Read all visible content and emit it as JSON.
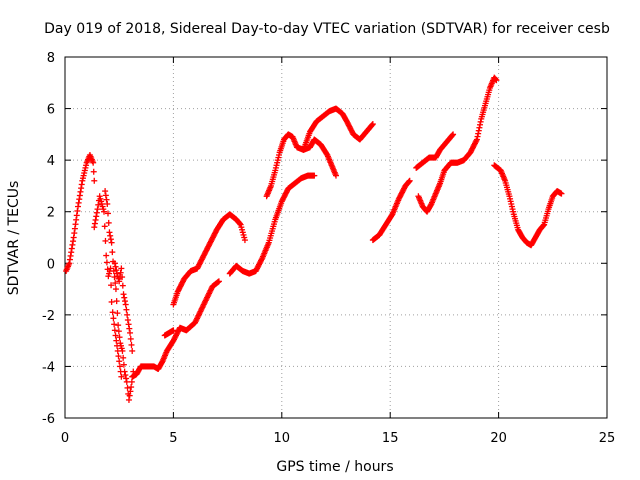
{
  "chart_data": {
    "type": "scatter",
    "title": "Day 019 of 2018, Sidereal Day-to-day VTEC variation (SDTVAR) for receiver cesb",
    "xlabel": "GPS time / hours",
    "ylabel": "SDTVAR / TECUs",
    "xlim": [
      0,
      25
    ],
    "ylim": [
      -6,
      8
    ],
    "xticks": [
      "0",
      "5",
      "10",
      "15",
      "20",
      "25"
    ],
    "yticks": [
      "-6",
      "-4",
      "-2",
      "0",
      "2",
      "4",
      "6",
      "8"
    ],
    "grid": true,
    "marker": "+",
    "series_color": "#ff0000",
    "series": [
      {
        "segments": [
          [
            [
              0.05,
              -0.3
            ],
            [
              0.2,
              0.0
            ],
            [
              0.4,
              1.0
            ],
            [
              0.6,
              2.2
            ],
            [
              0.8,
              3.2
            ],
            [
              1.0,
              3.9
            ],
            [
              1.15,
              4.2
            ],
            [
              1.3,
              3.9
            ],
            [
              1.35,
              3.2
            ]
          ],
          [
            [
              1.35,
              1.4
            ],
            [
              1.5,
              2.1
            ],
            [
              1.6,
              2.6
            ],
            [
              1.7,
              2.3
            ],
            [
              1.8,
              2.0
            ],
            [
              1.9,
              0.3
            ],
            [
              2.0,
              -0.5
            ],
            [
              2.1,
              -0.2
            ],
            [
              2.15,
              -1.5
            ]
          ],
          [
            [
              1.85,
              2.8
            ],
            [
              1.95,
              2.3
            ],
            [
              2.05,
              1.2
            ],
            [
              2.15,
              0.8
            ],
            [
              2.25,
              -0.3
            ],
            [
              2.35,
              -1.0
            ],
            [
              2.45,
              -2.4
            ],
            [
              2.55,
              -3.1
            ],
            [
              2.65,
              -3.4
            ],
            [
              2.75,
              -4.2
            ],
            [
              2.85,
              -4.6
            ],
            [
              2.95,
              -5.3
            ],
            [
              3.05,
              -4.8
            ],
            [
              3.15,
              -4.2
            ]
          ],
          [
            [
              2.2,
              -1.9
            ],
            [
              2.3,
              -2.6
            ],
            [
              2.4,
              -3.2
            ],
            [
              2.5,
              -3.8
            ],
            [
              2.6,
              -4.4
            ]
          ],
          [
            [
              2.3,
              0.0
            ],
            [
              2.4,
              -0.4
            ],
            [
              2.5,
              -0.7
            ],
            [
              2.6,
              -0.2
            ],
            [
              2.7,
              -1.2
            ],
            [
              2.8,
              -1.6
            ],
            [
              2.9,
              -2.2
            ],
            [
              3.0,
              -2.7
            ],
            [
              3.1,
              -3.4
            ]
          ],
          [
            [
              3.1,
              -4.4
            ],
            [
              3.3,
              -4.3
            ],
            [
              3.5,
              -4.0
            ],
            [
              3.8,
              -4.0
            ],
            [
              4.1,
              -4.0
            ],
            [
              4.3,
              -4.1
            ],
            [
              4.5,
              -3.8
            ],
            [
              4.7,
              -3.4
            ],
            [
              5.0,
              -3.0
            ],
            [
              5.3,
              -2.5
            ],
            [
              5.6,
              -2.6
            ],
            [
              6.0,
              -2.3
            ],
            [
              6.4,
              -1.6
            ],
            [
              6.8,
              -0.9
            ],
            [
              7.1,
              -0.7
            ]
          ],
          [
            [
              4.6,
              -2.8
            ],
            [
              4.8,
              -2.7
            ],
            [
              5.0,
              -2.6
            ]
          ],
          [
            [
              5.0,
              -1.6
            ],
            [
              5.2,
              -1.1
            ],
            [
              5.5,
              -0.6
            ],
            [
              5.8,
              -0.3
            ],
            [
              6.1,
              -0.2
            ],
            [
              6.4,
              0.3
            ],
            [
              6.7,
              0.8
            ],
            [
              7.0,
              1.3
            ],
            [
              7.3,
              1.7
            ],
            [
              7.6,
              1.9
            ],
            [
              7.9,
              1.7
            ],
            [
              8.1,
              1.5
            ],
            [
              8.2,
              1.2
            ],
            [
              8.3,
              0.9
            ]
          ],
          [
            [
              7.6,
              -0.4
            ],
            [
              7.9,
              -0.1
            ],
            [
              8.2,
              -0.3
            ],
            [
              8.5,
              -0.4
            ],
            [
              8.8,
              -0.3
            ],
            [
              9.1,
              0.2
            ],
            [
              9.4,
              0.8
            ],
            [
              9.7,
              1.7
            ],
            [
              10.0,
              2.4
            ],
            [
              10.3,
              2.9
            ],
            [
              10.6,
              3.1
            ],
            [
              10.9,
              3.3
            ],
            [
              11.2,
              3.4
            ],
            [
              11.5,
              3.4
            ]
          ],
          [
            [
              9.3,
              2.6
            ],
            [
              9.5,
              3.0
            ],
            [
              9.7,
              3.6
            ],
            [
              9.9,
              4.3
            ],
            [
              10.1,
              4.8
            ],
            [
              10.3,
              5.0
            ],
            [
              10.5,
              4.9
            ],
            [
              10.7,
              4.5
            ],
            [
              11.0,
              4.4
            ],
            [
              11.3,
              4.5
            ],
            [
              11.5,
              4.8
            ],
            [
              11.8,
              4.6
            ],
            [
              12.1,
              4.2
            ],
            [
              12.3,
              3.8
            ],
            [
              12.5,
              3.4
            ]
          ],
          [
            [
              11.0,
              4.4
            ],
            [
              11.3,
              5.1
            ],
            [
              11.6,
              5.5
            ],
            [
              11.9,
              5.7
            ],
            [
              12.2,
              5.9
            ],
            [
              12.5,
              6.0
            ],
            [
              12.8,
              5.8
            ],
            [
              13.0,
              5.5
            ],
            [
              13.3,
              5.0
            ],
            [
              13.6,
              4.8
            ],
            [
              13.9,
              5.1
            ],
            [
              14.2,
              5.4
            ]
          ],
          [
            [
              14.2,
              0.9
            ],
            [
              14.5,
              1.1
            ],
            [
              14.8,
              1.5
            ],
            [
              15.1,
              1.9
            ],
            [
              15.4,
              2.5
            ],
            [
              15.7,
              3.0
            ],
            [
              15.9,
              3.2
            ]
          ],
          [
            [
              16.2,
              3.7
            ],
            [
              16.5,
              3.9
            ],
            [
              16.8,
              4.1
            ],
            [
              17.1,
              4.1
            ],
            [
              17.3,
              4.4
            ],
            [
              17.5,
              4.6
            ],
            [
              17.7,
              4.8
            ],
            [
              17.9,
              5.0
            ]
          ],
          [
            [
              16.3,
              2.6
            ],
            [
              16.5,
              2.2
            ],
            [
              16.7,
              2.0
            ],
            [
              16.9,
              2.3
            ],
            [
              17.1,
              2.7
            ],
            [
              17.3,
              3.1
            ],
            [
              17.5,
              3.6
            ],
            [
              17.8,
              3.9
            ],
            [
              18.1,
              3.9
            ],
            [
              18.4,
              4.0
            ],
            [
              18.7,
              4.3
            ],
            [
              19.0,
              4.8
            ],
            [
              19.2,
              5.6
            ],
            [
              19.4,
              6.2
            ],
            [
              19.6,
              6.8
            ],
            [
              19.8,
              7.2
            ],
            [
              19.9,
              7.1
            ]
          ],
          [
            [
              19.8,
              3.8
            ],
            [
              20.1,
              3.6
            ],
            [
              20.3,
              3.2
            ],
            [
              20.5,
              2.6
            ],
            [
              20.7,
              1.9
            ],
            [
              20.9,
              1.3
            ],
            [
              21.1,
              1.0
            ],
            [
              21.3,
              0.8
            ],
            [
              21.5,
              0.7
            ],
            [
              21.7,
              1.0
            ],
            [
              21.9,
              1.3
            ],
            [
              22.1,
              1.5
            ],
            [
              22.3,
              2.1
            ],
            [
              22.5,
              2.6
            ],
            [
              22.7,
              2.8
            ],
            [
              22.9,
              2.7
            ]
          ]
        ]
      }
    ]
  }
}
